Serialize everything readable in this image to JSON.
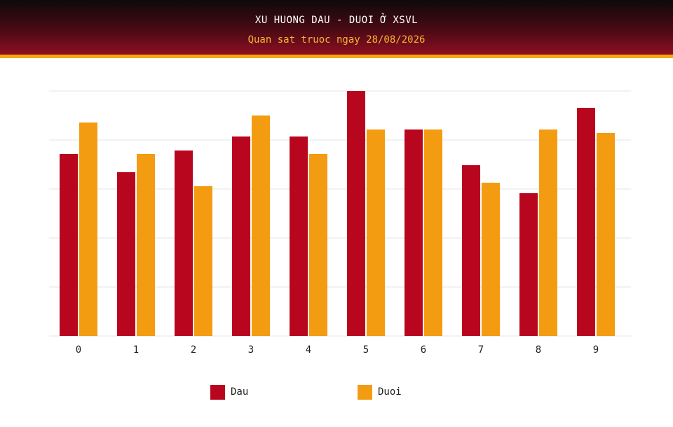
{
  "header": {
    "title": "XU HUONG DAU - DUOI Ở XSVL",
    "subtitle": "Quan sat truoc ngay 28/08/2026"
  },
  "colors": {
    "dau": "#b8061f",
    "duoi": "#f39c12",
    "grid": "#e6e6e6",
    "header_accent": "#f5a70f"
  },
  "chart_data": {
    "type": "bar",
    "categories": [
      "0",
      "1",
      "2",
      "3",
      "4",
      "5",
      "6",
      "7",
      "8",
      "9"
    ],
    "series": [
      {
        "name": "Dau",
        "values": [
          26,
          23.4,
          26.5,
          28.5,
          28.5,
          35,
          29.5,
          24.4,
          20.4,
          32.6
        ]
      },
      {
        "name": "Duoi",
        "values": [
          30.5,
          26,
          21.4,
          31.5,
          26,
          29.5,
          29.5,
          21.9,
          29.5,
          29
        ]
      }
    ],
    "ylim": [
      0,
      35
    ],
    "grid": true,
    "legend_position": "bottom"
  }
}
